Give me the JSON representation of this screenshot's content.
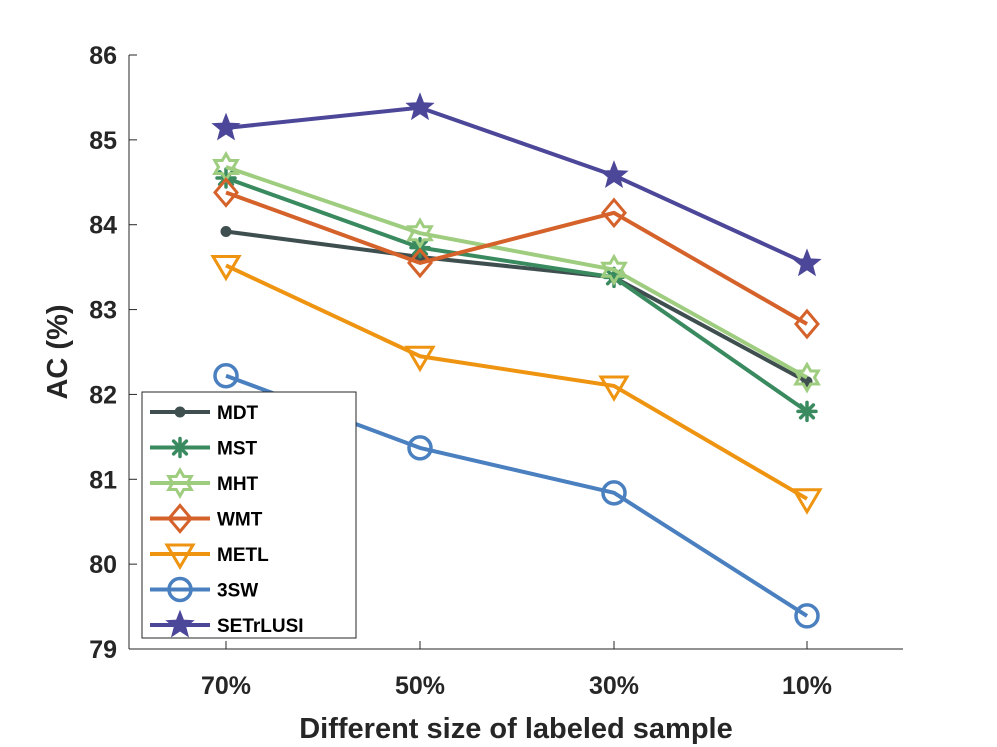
{
  "chart_data": {
    "type": "line",
    "title": "",
    "xlabel": "Different size of labeled sample",
    "ylabel": "AC (%)",
    "categories": [
      "70%",
      "50%",
      "30%",
      "10%"
    ],
    "ylim": [
      79,
      86
    ],
    "yticks": [
      "79",
      "80",
      "81",
      "82",
      "83",
      "84",
      "85",
      "86"
    ],
    "grid": false,
    "legend_position": "bottom-left",
    "series": [
      {
        "name": "MDT",
        "marker": "dot",
        "color": "#3f4f4f",
        "values": [
          83.92,
          83.62,
          83.38,
          82.15
        ]
      },
      {
        "name": "MST",
        "marker": "asterisk",
        "color": "#3a8a5f",
        "values": [
          84.55,
          83.73,
          83.38,
          81.8
        ]
      },
      {
        "name": "MHT",
        "marker": "hexagram",
        "color": "#9fcd7f",
        "values": [
          84.68,
          83.9,
          83.47,
          82.2
        ]
      },
      {
        "name": "WMT",
        "marker": "diamond",
        "color": "#d4622a",
        "values": [
          84.38,
          83.55,
          84.14,
          82.83
        ]
      },
      {
        "name": "METL",
        "marker": "triangle-down",
        "color": "#ee9410",
        "values": [
          83.52,
          82.45,
          82.1,
          80.77
        ]
      },
      {
        "name": "3SW",
        "marker": "circle",
        "color": "#4a80bf",
        "values": [
          82.22,
          81.37,
          80.84,
          79.39
        ]
      },
      {
        "name": "SETrLUSI",
        "marker": "pentagram",
        "color": "#4c4799",
        "values": [
          85.14,
          85.38,
          84.58,
          83.54
        ]
      }
    ]
  }
}
